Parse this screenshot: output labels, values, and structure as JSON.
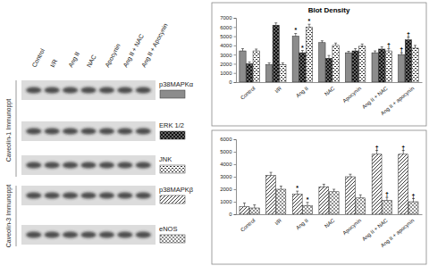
{
  "blots": {
    "lanes": [
      "Control",
      "I/R",
      "Ang II",
      "NAC",
      "Apocynin",
      "Ang II + NAC",
      "Ang II + Apocynin"
    ],
    "groups": [
      {
        "label": "Caveolin-1 Immunoppt"
      },
      {
        "label": "Caveolin-3 Immunoppt"
      }
    ]
  },
  "chart_data": [
    {
      "type": "bar",
      "title": "Blot Density",
      "categories": [
        "Control",
        "I/R",
        "Ang II",
        "NAC",
        "Apocynin",
        "Ang II + NAC",
        "Ang II + apocynin"
      ],
      "ylim": [
        0,
        7000
      ],
      "yticks": [
        0,
        1000,
        2000,
        3000,
        4000,
        5000,
        6000,
        7000
      ],
      "series": [
        {
          "name": "p38MAPKα",
          "color": "#8c8c8c",
          "values": [
            3400,
            1900,
            5000,
            4300,
            3200,
            3200,
            3000
          ],
          "errors": [
            250,
            200,
            300,
            200,
            150,
            200,
            200
          ]
        },
        {
          "name": "ERK 1/2",
          "color": "#111111",
          "values": [
            2000,
            6200,
            3200,
            2600,
            3400,
            3600,
            4600
          ],
          "errors": [
            200,
            250,
            250,
            300,
            250,
            250,
            300
          ]
        },
        {
          "name": "JNK",
          "color": "#ffffff",
          "values": [
            3400,
            1900,
            6000,
            4000,
            3900,
            3400,
            3700
          ],
          "errors": [
            200,
            200,
            300,
            250,
            250,
            250,
            300
          ]
        }
      ],
      "annotations": [
        {
          "text": "*",
          "category": 2,
          "series": 0
        },
        {
          "text": "*",
          "category": 2,
          "series": 1
        },
        {
          "text": "*",
          "category": 2,
          "series": 2
        },
        {
          "text": "†",
          "category": 5,
          "series": 2
        },
        {
          "text": "†",
          "category": 6,
          "series": 0
        },
        {
          "text": "†",
          "category": 6,
          "series": 1
        }
      ]
    },
    {
      "type": "bar",
      "categories": [
        "Control",
        "I/R",
        "Ang II",
        "NAC",
        "Apocynin",
        "Ang II + NAC",
        "Ang II + apocynin"
      ],
      "ylim": [
        0,
        6000
      ],
      "yticks": [
        0,
        1000,
        2000,
        3000,
        4000,
        5000,
        6000
      ],
      "series": [
        {
          "name": "p38MAPKβ",
          "color": "#ffffff",
          "values": [
            600,
            3100,
            1600,
            2200,
            3000,
            4800,
            4800
          ],
          "errors": [
            300,
            250,
            250,
            200,
            200,
            300,
            300
          ]
        },
        {
          "name": "eNOS",
          "color": "#ffffff",
          "values": [
            500,
            2000,
            700,
            1800,
            1300,
            1100,
            1000
          ],
          "errors": [
            250,
            250,
            250,
            200,
            250,
            250,
            250
          ]
        }
      ],
      "annotations": [
        {
          "text": "*",
          "category": 2,
          "series": 0
        },
        {
          "text": "*",
          "category": 2,
          "series": 1
        },
        {
          "text": "†",
          "category": 5,
          "series": 0
        },
        {
          "text": "†",
          "category": 5,
          "series": 1
        },
        {
          "text": "†",
          "category": 6,
          "series": 0
        },
        {
          "text": "†",
          "category": 6,
          "series": 1
        }
      ]
    }
  ]
}
